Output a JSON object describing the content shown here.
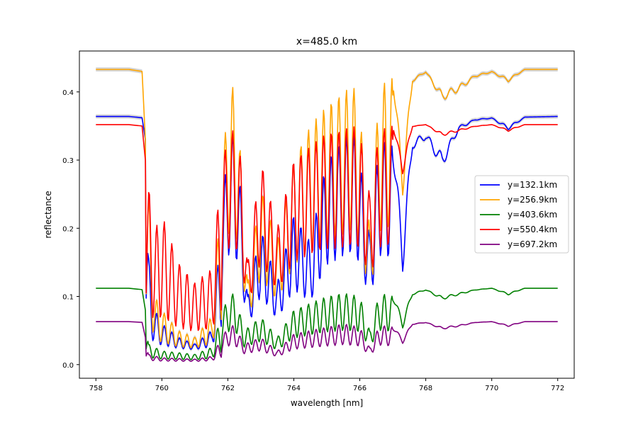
{
  "chart_data": {
    "type": "line",
    "title": "x=485.0 km",
    "xlabel": "wavelength [nm]",
    "ylabel": "reflectance",
    "xlim": [
      757.5,
      772.5
    ],
    "ylim": [
      -0.02,
      0.46
    ],
    "xticks": [
      758,
      760,
      762,
      764,
      766,
      768,
      770,
      772
    ],
    "yticks": [
      0.0,
      0.1,
      0.2,
      0.3,
      0.4
    ],
    "legend_position": "center-right",
    "grid": false,
    "series": [
      {
        "name": "y=132.1km",
        "color": "#0000ff",
        "baseline": 0.364,
        "min_band": 0.02,
        "uncertainty": true,
        "points": [
          [
            758,
            0.364
          ],
          [
            759,
            0.364
          ],
          [
            759.4,
            0.362
          ],
          [
            759.5,
            0.33
          ],
          [
            759.6,
            0.16
          ],
          [
            759.7,
            0.1
          ],
          [
            759.8,
            0.08
          ],
          [
            760,
            0.06
          ],
          [
            760.5,
            0.04
          ],
          [
            761,
            0.03
          ],
          [
            761.5,
            0.05
          ],
          [
            761.8,
            0.2
          ],
          [
            762,
            0.33
          ],
          [
            762.2,
            0.34
          ],
          [
            762.4,
            0.25
          ],
          [
            762.6,
            0.1
          ],
          [
            763,
            0.2
          ],
          [
            763.5,
            0.12
          ],
          [
            764,
            0.22
          ],
          [
            764.5,
            0.18
          ],
          [
            765,
            0.3
          ],
          [
            765.5,
            0.33
          ],
          [
            765.8,
            0.34
          ],
          [
            766,
            0.3
          ],
          [
            766.3,
            0.19
          ],
          [
            766.6,
            0.33
          ],
          [
            767,
            0.32
          ],
          [
            767.3,
            0.2
          ],
          [
            767.6,
            0.33
          ],
          [
            768,
            0.34
          ],
          [
            768.5,
            0.31
          ],
          [
            769,
            0.35
          ],
          [
            769.5,
            0.36
          ],
          [
            770,
            0.362
          ],
          [
            770.5,
            0.35
          ],
          [
            771,
            0.363
          ],
          [
            772,
            0.364
          ]
        ]
      },
      {
        "name": "y=256.9km",
        "color": "#ffa500",
        "baseline": 0.433,
        "min_band": 0.02,
        "uncertainty": true,
        "points": [
          [
            758,
            0.433
          ],
          [
            759,
            0.433
          ],
          [
            759.4,
            0.43
          ],
          [
            759.5,
            0.33
          ],
          [
            759.6,
            0.25
          ],
          [
            759.8,
            0.1
          ],
          [
            760,
            0.08
          ],
          [
            760.5,
            0.05
          ],
          [
            761,
            0.04
          ],
          [
            761.5,
            0.07
          ],
          [
            761.8,
            0.25
          ],
          [
            762,
            0.4
          ],
          [
            762.2,
            0.41
          ],
          [
            762.4,
            0.3
          ],
          [
            762.6,
            0.12
          ],
          [
            763,
            0.26
          ],
          [
            763.5,
            0.18
          ],
          [
            764,
            0.3
          ],
          [
            764.5,
            0.35
          ],
          [
            765,
            0.38
          ],
          [
            765.5,
            0.4
          ],
          [
            765.8,
            0.41
          ],
          [
            766,
            0.37
          ],
          [
            766.3,
            0.2
          ],
          [
            766.6,
            0.41
          ],
          [
            767,
            0.42
          ],
          [
            767.3,
            0.3
          ],
          [
            767.6,
            0.42
          ],
          [
            768,
            0.43
          ],
          [
            768.5,
            0.4
          ],
          [
            769,
            0.41
          ],
          [
            769.5,
            0.425
          ],
          [
            770,
            0.43
          ],
          [
            770.5,
            0.42
          ],
          [
            771,
            0.433
          ],
          [
            772,
            0.433
          ]
        ]
      },
      {
        "name": "y=403.6km",
        "color": "#008000",
        "baseline": 0.112,
        "min_band": 0.005,
        "uncertainty": false,
        "points": [
          [
            758,
            0.112
          ],
          [
            759,
            0.112
          ],
          [
            759.4,
            0.11
          ],
          [
            759.5,
            0.08
          ],
          [
            759.6,
            0.03
          ],
          [
            760,
            0.02
          ],
          [
            761,
            0.015
          ],
          [
            761.5,
            0.025
          ],
          [
            762,
            0.1
          ],
          [
            762.2,
            0.105
          ],
          [
            762.5,
            0.05
          ],
          [
            763,
            0.07
          ],
          [
            763.5,
            0.04
          ],
          [
            764,
            0.08
          ],
          [
            764.5,
            0.09
          ],
          [
            765,
            0.1
          ],
          [
            765.5,
            0.105
          ],
          [
            766,
            0.1
          ],
          [
            766.3,
            0.05
          ],
          [
            766.6,
            0.105
          ],
          [
            767,
            0.1
          ],
          [
            767.3,
            0.07
          ],
          [
            767.6,
            0.105
          ],
          [
            768,
            0.11
          ],
          [
            768.5,
            0.1
          ],
          [
            769,
            0.105
          ],
          [
            769.5,
            0.11
          ],
          [
            770,
            0.112
          ],
          [
            770.5,
            0.105
          ],
          [
            771,
            0.112
          ],
          [
            772,
            0.112
          ]
        ]
      },
      {
        "name": "y=550.4km",
        "color": "#ff0000",
        "baseline": 0.352,
        "min_band": 0.03,
        "uncertainty": false,
        "points": [
          [
            758,
            0.352
          ],
          [
            759,
            0.352
          ],
          [
            759.4,
            0.35
          ],
          [
            759.5,
            0.3
          ],
          [
            759.6,
            0.26
          ],
          [
            759.8,
            0.2
          ],
          [
            760,
            0.22
          ],
          [
            760.5,
            0.15
          ],
          [
            761,
            0.12
          ],
          [
            761.5,
            0.14
          ],
          [
            761.8,
            0.28
          ],
          [
            762,
            0.34
          ],
          [
            762.2,
            0.345
          ],
          [
            762.4,
            0.3
          ],
          [
            762.6,
            0.15
          ],
          [
            763,
            0.3
          ],
          [
            763.5,
            0.2
          ],
          [
            764,
            0.3
          ],
          [
            764.5,
            0.32
          ],
          [
            765,
            0.34
          ],
          [
            765.5,
            0.345
          ],
          [
            765.8,
            0.35
          ],
          [
            766,
            0.34
          ],
          [
            766.3,
            0.25
          ],
          [
            766.6,
            0.345
          ],
          [
            767,
            0.35
          ],
          [
            767.3,
            0.3
          ],
          [
            767.6,
            0.35
          ],
          [
            768,
            0.352
          ],
          [
            768.5,
            0.34
          ],
          [
            769,
            0.345
          ],
          [
            769.5,
            0.35
          ],
          [
            770,
            0.352
          ],
          [
            770.5,
            0.345
          ],
          [
            771,
            0.352
          ],
          [
            772,
            0.352
          ]
        ]
      },
      {
        "name": "y=697.2km",
        "color": "#800080",
        "baseline": 0.063,
        "min_band": 0.004,
        "uncertainty": false,
        "points": [
          [
            758,
            0.063
          ],
          [
            759,
            0.063
          ],
          [
            759.4,
            0.062
          ],
          [
            759.5,
            0.04
          ],
          [
            759.6,
            0.015
          ],
          [
            760,
            0.01
          ],
          [
            761,
            0.008
          ],
          [
            761.5,
            0.012
          ],
          [
            762,
            0.055
          ],
          [
            762.2,
            0.058
          ],
          [
            762.5,
            0.03
          ],
          [
            763,
            0.04
          ],
          [
            763.5,
            0.02
          ],
          [
            764,
            0.045
          ],
          [
            764.5,
            0.05
          ],
          [
            765,
            0.055
          ],
          [
            765.5,
            0.06
          ],
          [
            766,
            0.055
          ],
          [
            766.3,
            0.025
          ],
          [
            766.6,
            0.058
          ],
          [
            767,
            0.055
          ],
          [
            767.3,
            0.04
          ],
          [
            767.6,
            0.06
          ],
          [
            768,
            0.062
          ],
          [
            768.5,
            0.055
          ],
          [
            769,
            0.058
          ],
          [
            769.5,
            0.062
          ],
          [
            770,
            0.063
          ],
          [
            770.5,
            0.058
          ],
          [
            771,
            0.063
          ],
          [
            772,
            0.063
          ]
        ]
      }
    ]
  }
}
